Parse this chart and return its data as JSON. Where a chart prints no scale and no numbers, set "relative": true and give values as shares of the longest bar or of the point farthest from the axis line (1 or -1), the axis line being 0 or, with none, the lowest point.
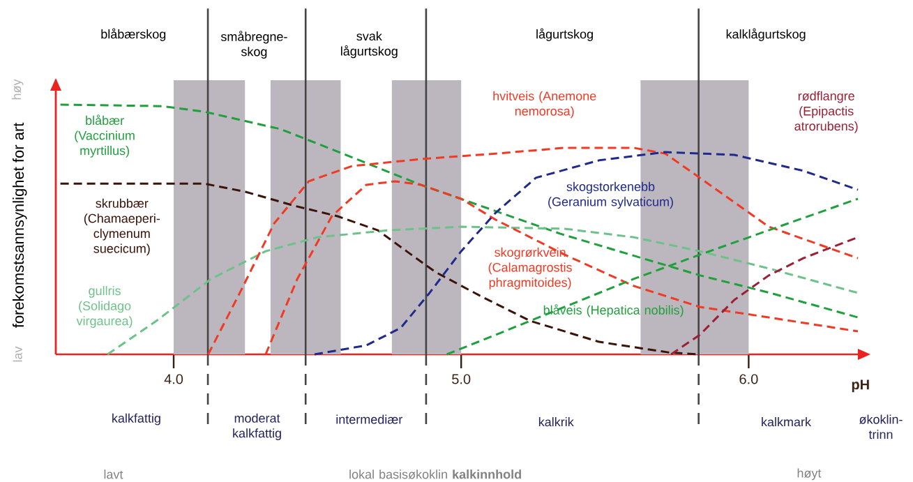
{
  "chart_data": {
    "type": "line",
    "relative": true,
    "line_style": "dashed",
    "marker": "none",
    "grid": false,
    "tick_labels": "x",
    "xlabel": "pH",
    "ylabel": "forekomstsannsynlighet for art",
    "xlim": [
      3.59,
      6.38
    ],
    "xticks": [
      {
        "value": 4,
        "label": "4.0"
      },
      {
        "value": 5,
        "label": "5.0"
      },
      {
        "value": 6,
        "label": "6.0"
      }
    ],
    "series": [
      {
        "name": "blåbær (Vaccinium myrtillus)",
        "color": "#1fa03c",
        "x": [
          3.606,
          3.959,
          4.105,
          4.372,
          4.616,
          4.859,
          5.102,
          5.345,
          5.589,
          5.832,
          6.075,
          6.38
        ],
        "values": [
          1.0,
          0.994,
          0.972,
          0.902,
          0.791,
          0.679,
          0.581,
          0.483,
          0.399,
          0.316,
          0.246,
          0.148
        ]
      },
      {
        "name": "skrubbær (Chamaeperi-clymenum suecicum)",
        "color": "#3b1308",
        "x": [
          3.606,
          4.105,
          4.25,
          4.42,
          4.57,
          4.71,
          4.81,
          4.91,
          5.07,
          5.24,
          5.48,
          5.72,
          5.82
        ],
        "values": [
          0.684,
          0.684,
          0.651,
          0.595,
          0.553,
          0.497,
          0.413,
          0.33,
          0.232,
          0.134,
          0.05,
          0.008,
          0.0
        ]
      },
      {
        "name": "gullris (Solidago virgaurea)",
        "color": "#6cc288",
        "x": [
          3.77,
          3.94,
          4.13,
          4.32,
          4.5,
          4.75,
          5.0,
          5.36,
          5.6,
          5.83,
          6.07,
          6.38
        ],
        "values": [
          0.0,
          0.134,
          0.302,
          0.413,
          0.469,
          0.497,
          0.511,
          0.503,
          0.469,
          0.413,
          0.344,
          0.246
        ]
      },
      {
        "name": "hvitveis (Anemone nemorosa)",
        "color": "#f03a24",
        "x": [
          4.12,
          4.23,
          4.35,
          4.47,
          4.62,
          4.86,
          5.12,
          5.36,
          5.6,
          5.71,
          5.83,
          5.95,
          6.07,
          6.38
        ],
        "values": [
          0.0,
          0.246,
          0.525,
          0.693,
          0.754,
          0.782,
          0.804,
          0.827,
          0.827,
          0.804,
          0.707,
          0.609,
          0.511,
          0.385
        ]
      },
      {
        "name": "skogrørkvein (Calamagrostis phragmitoides)",
        "color": "#f03a24",
        "x": [
          4.32,
          4.43,
          4.55,
          4.67,
          4.77,
          4.86,
          5.0,
          5.12,
          5.36,
          5.6,
          5.83,
          6.07,
          6.38
        ],
        "values": [
          0.0,
          0.302,
          0.553,
          0.679,
          0.693,
          0.679,
          0.623,
          0.539,
          0.399,
          0.274,
          0.19,
          0.148,
          0.092
        ]
      },
      {
        "name": "skogstorkenebb (Geranium sylvaticum)",
        "color": "#1f2a8c",
        "x": [
          4.49,
          4.67,
          4.79,
          4.89,
          5.0,
          5.12,
          5.26,
          5.48,
          5.71,
          5.95,
          6.19,
          6.38
        ],
        "values": [
          0.0,
          0.036,
          0.106,
          0.246,
          0.413,
          0.567,
          0.707,
          0.777,
          0.81,
          0.799,
          0.735,
          0.659
        ]
      },
      {
        "name": "blåveis (Hepatica nobilis)",
        "color": "#1fa03c",
        "x": [
          4.95,
          5.12,
          5.36,
          5.6,
          5.83,
          6.07,
          6.38
        ],
        "values": [
          0.0,
          0.078,
          0.19,
          0.302,
          0.399,
          0.497,
          0.623
        ]
      },
      {
        "name": "rødflangre (Epipactis atrorubens)",
        "color": "#9a2035",
        "x": [
          5.73,
          5.83,
          5.95,
          6.07,
          6.19,
          6.38
        ],
        "values": [
          0.0,
          0.078,
          0.218,
          0.316,
          0.385,
          0.469
        ]
      }
    ],
    "bands": [
      {
        "axis": "x",
        "from": 4.0,
        "to": 4.248,
        "color": "#bcb7be"
      },
      {
        "axis": "x",
        "from": 4.337,
        "to": 4.581,
        "color": "#bcb7be"
      },
      {
        "axis": "x",
        "from": 4.759,
        "to": 5.0,
        "color": "#bcb7be"
      },
      {
        "axis": "x",
        "from": 5.624,
        "to": 6.0,
        "color": "#bcb7be"
      }
    ],
    "ref_lines": [
      {
        "axis": "x",
        "value": 4.119,
        "color": "#444444"
      },
      {
        "axis": "x",
        "value": 4.459,
        "color": "#444444"
      },
      {
        "axis": "x",
        "value": 4.878,
        "color": "#444444"
      },
      {
        "axis": "x",
        "value": 5.826,
        "color": "#444444"
      }
    ],
    "annotations": [
      "blåbærskog",
      "småbregne-skog",
      "svak lågurtskog",
      "lågurtskog",
      "kalklågurtskog",
      "kalkfattig",
      "moderat kalkfattig",
      "intermediær",
      "kalkrik",
      "kalkmark",
      "økoklin-trinn",
      "lavt",
      "lokal basisøkoklin **kalkinnhold**",
      "høyt",
      "lav",
      "høy"
    ]
  }
}
